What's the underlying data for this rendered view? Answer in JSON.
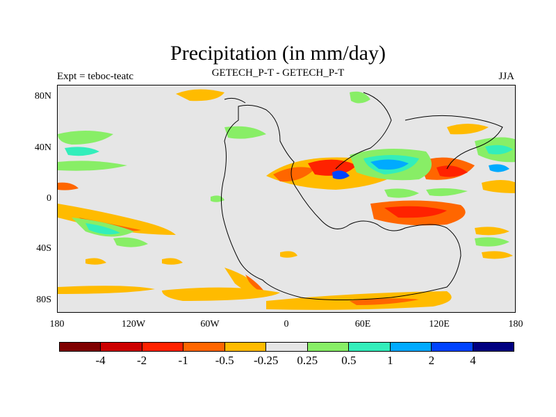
{
  "title": "Precipitation (in mm/day)",
  "left_label": "Expt = teboc-teatc",
  "center_label": "GETECH_P-T - GETECH_P-T",
  "right_label": "JJA",
  "y_ticks": [
    "80N",
    "40N",
    "0",
    "40S",
    "80S"
  ],
  "x_ticks": [
    "180",
    "120W",
    "60W",
    "0",
    "60E",
    "120E",
    "180"
  ],
  "colorbar": {
    "colors": [
      "#7f0000",
      "#cc0000",
      "#ff2200",
      "#ff6600",
      "#ffbb00",
      "#e6e6e6",
      "#88ee66",
      "#33eebb",
      "#00aaff",
      "#0044ff",
      "#000080"
    ],
    "labels": [
      "-4",
      "-2",
      "-1",
      "-0.5",
      "-0.25",
      "0.25",
      "0.5",
      "1",
      "2",
      "4"
    ]
  },
  "colors": {
    "background": "#e6e6e6",
    "neg_light": "#ffbb00",
    "neg_mid": "#ff6600",
    "neg_strong": "#ff2200",
    "pos_light": "#88ee66",
    "pos_mid": "#33eebb",
    "pos_strong": "#00aaff",
    "pos_deep": "#0044ff"
  }
}
